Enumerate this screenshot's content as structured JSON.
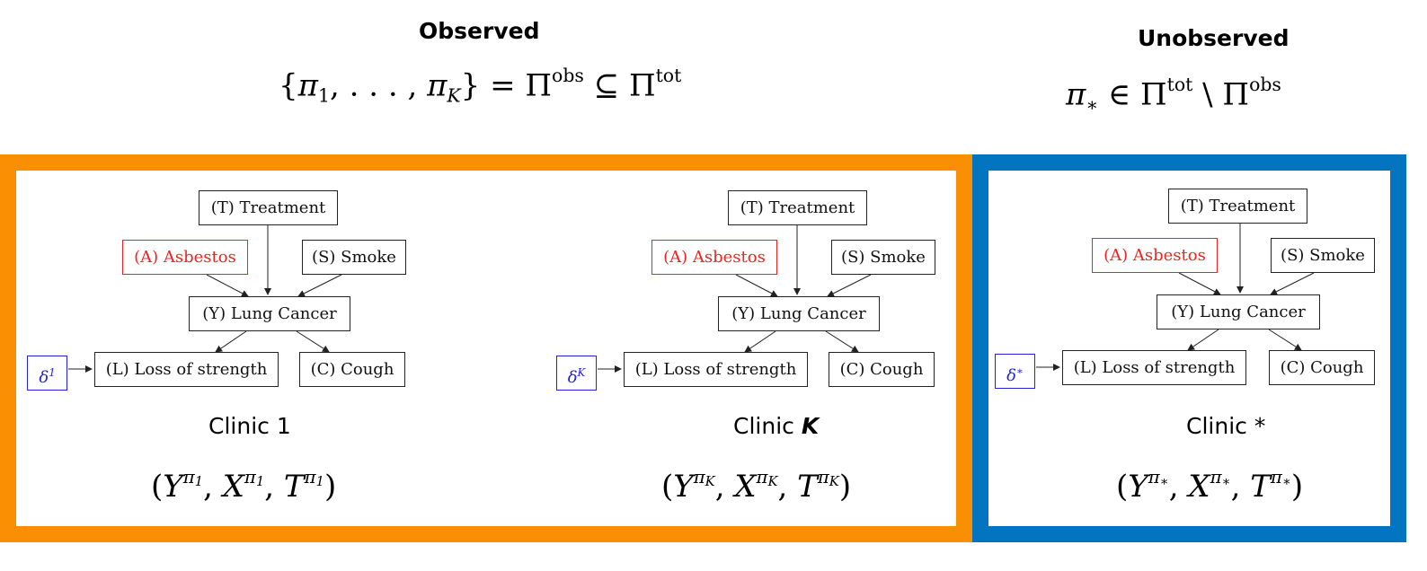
{
  "header": {
    "observed_label": "Observed",
    "unobserved_label": "Unobserved"
  },
  "math": {
    "observed_set": {
      "pi": "π",
      "sub_1": "1",
      "ellipsis": ", . . . , ",
      "sub_K": "K",
      "relation": "} = Π",
      "obs": "obs",
      "subset": " ⊆ Π",
      "tot": "tot",
      "open": "{"
    },
    "unobserved_set": {
      "pi": "π",
      "star": "∗",
      "in": " ∈ Π",
      "tot": "tot",
      "setminus": " \\ Π",
      "obs": "obs"
    }
  },
  "nodes": {
    "treatment": "(T) Treatment",
    "asbestos": "(A) Asbestos",
    "smoke": "(S) Smoke",
    "lung_cancer": "(Y) Lung Cancer",
    "loss_of_strength": "(L) Loss of strength",
    "cough": "(C) Cough"
  },
  "clinics": [
    {
      "label_prefix": "Clinic ",
      "label_id": "1",
      "label_italic": false,
      "delta_base": "δ",
      "delta_sup": "1",
      "tuple_sub": "1"
    },
    {
      "label_prefix": "Clinic ",
      "label_id": "K",
      "label_italic": true,
      "delta_base": "δ",
      "delta_sup": "K",
      "tuple_sub": "K"
    },
    {
      "label_prefix": "Clinic ",
      "label_id": "*",
      "label_italic": false,
      "delta_base": "δ",
      "delta_sup": "∗",
      "tuple_sub": "∗"
    }
  ],
  "tuple": {
    "open": "(",
    "Y": "Y",
    "X": "X",
    "T": "T",
    "pi": "π",
    "comma": ", ",
    "close": ")"
  },
  "colors": {
    "observed_border": "#fb8f04",
    "unobserved_border": "#0274c0",
    "asbestos": "#ee2222",
    "delta": "#2222dd"
  }
}
